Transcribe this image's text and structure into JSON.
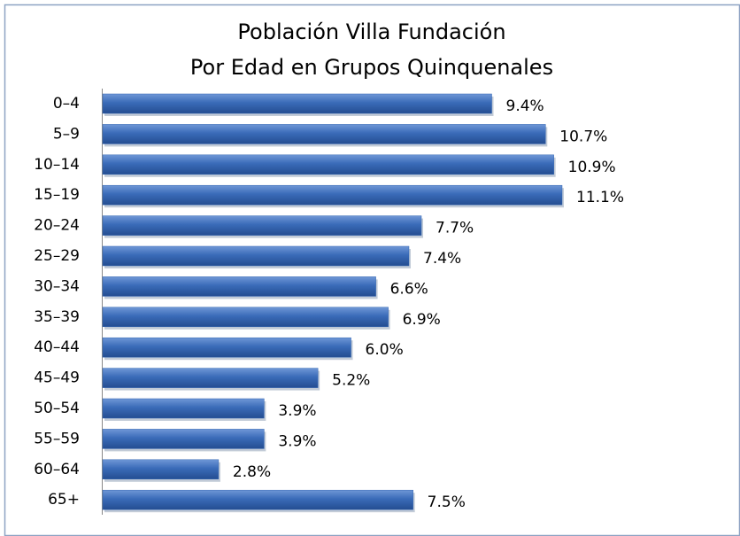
{
  "chart_data": {
    "type": "bar",
    "orientation": "horizontal",
    "title": "Población Villa Fundación",
    "subtitle": "Por Edad en Grupos Quinquenales",
    "categories": [
      "0–4",
      "5–9",
      "10–14",
      "15–19",
      "20–24",
      "25–29",
      "30–34",
      "35–39",
      "40–44",
      "45–49",
      "50–54",
      "55–59",
      "60–64",
      "65+"
    ],
    "values": [
      9.4,
      10.7,
      10.9,
      11.1,
      7.7,
      7.4,
      6.6,
      6.9,
      6.0,
      5.2,
      3.9,
      3.9,
      2.8,
      7.5
    ],
    "value_labels": [
      "9.4%",
      "10.7%",
      "10.9%",
      "11.1%",
      "7.7%",
      "7.4%",
      "6.6%",
      "6.9%",
      "6.0%",
      "5.2%",
      "3.9%",
      "3.9%",
      "2.8%",
      "7.5%"
    ],
    "color": "#3366b3"
  }
}
